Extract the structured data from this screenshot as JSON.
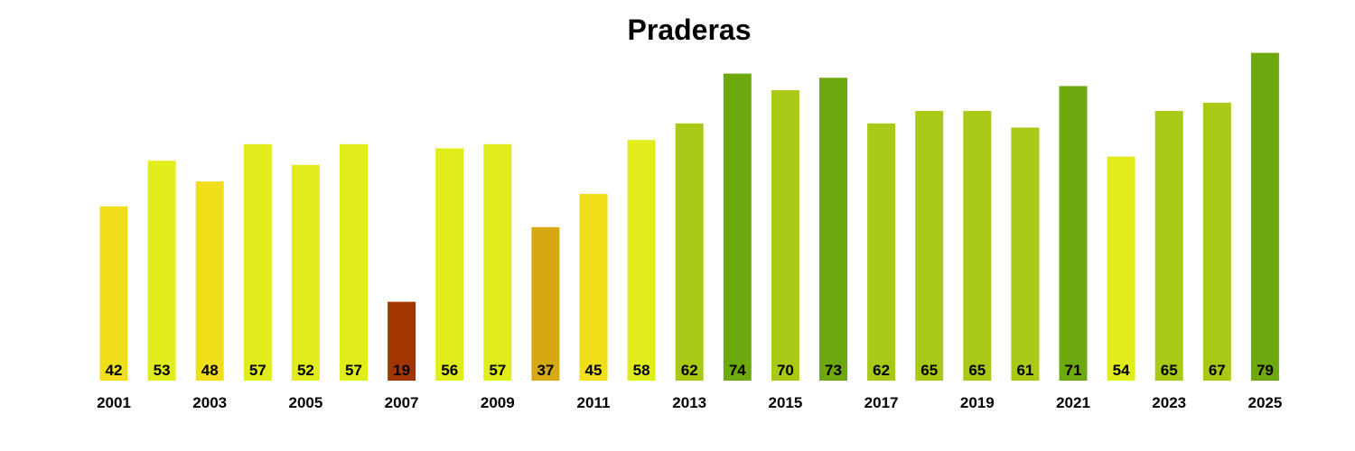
{
  "chart_data": {
    "type": "bar",
    "title": "Praderas",
    "xlabel": "",
    "ylabel": "",
    "grid": false,
    "legend": "none",
    "ylim": [
      0,
      80
    ],
    "categories": [
      "2001",
      "2002",
      "2003",
      "2004",
      "2005",
      "2006",
      "2007",
      "2008",
      "2009",
      "2010",
      "2011",
      "2012",
      "2013",
      "2014",
      "2015",
      "2016",
      "2017",
      "2018",
      "2019",
      "2020",
      "2021",
      "2022",
      "2023",
      "2024",
      "2025"
    ],
    "tick_labels": [
      "2001",
      "",
      "2003",
      "",
      "2005",
      "",
      "2007",
      "",
      "2009",
      "",
      "2011",
      "",
      "2013",
      "",
      "2015",
      "",
      "2017",
      "",
      "2019",
      "",
      "2021",
      "",
      "2023",
      "",
      "2025"
    ],
    "values": [
      42,
      53,
      48,
      57,
      52,
      57,
      19,
      56,
      57,
      37,
      45,
      58,
      62,
      74,
      70,
      73,
      62,
      65,
      65,
      61,
      71,
      54,
      65,
      67,
      79
    ],
    "value_labels": [
      "42",
      "53",
      "48",
      "57",
      "52",
      "57",
      "19",
      "56",
      "57",
      "37",
      "45",
      "58",
      "62",
      "74",
      "70",
      "73",
      "62",
      "65",
      "65",
      "61",
      "71",
      "54",
      "65",
      "67",
      "79"
    ],
    "colors": [
      "#f0de1a",
      "#e1ec1b",
      "#f0de1a",
      "#e1ec1b",
      "#e1ec1b",
      "#e1ec1b",
      "#a33502",
      "#e1ec1b",
      "#e1ec1b",
      "#d6a812",
      "#f0de1a",
      "#e1ec1b",
      "#a9c917",
      "#6ea80f",
      "#a9c917",
      "#6ea80f",
      "#a9c917",
      "#a9c917",
      "#a9c917",
      "#a9c917",
      "#6ea80f",
      "#e1ec1b",
      "#a9c917",
      "#a9c917",
      "#6ea80f"
    ]
  }
}
